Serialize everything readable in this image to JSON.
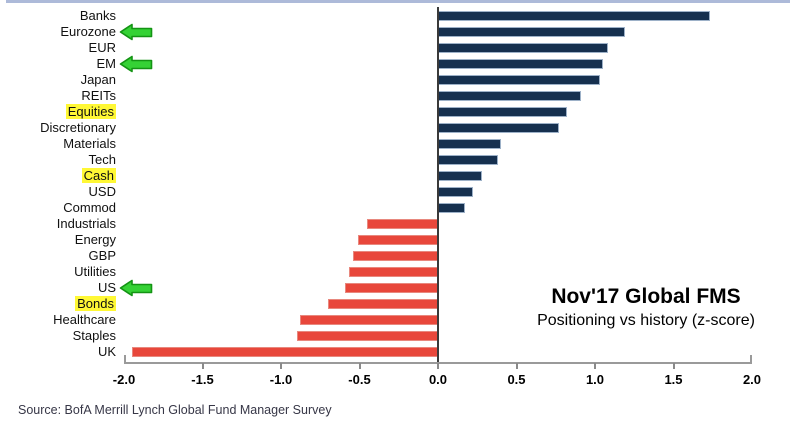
{
  "chart_data": {
    "type": "bar",
    "orientation": "horizontal",
    "title": "Nov'17 Global FMS",
    "subtitle": "Positioning vs history (z-score)",
    "categories": [
      "Banks",
      "Eurozone",
      "EUR",
      "EM",
      "Japan",
      "REITs",
      "Equities",
      "Discretionary",
      "Materials",
      "Tech",
      "Cash",
      "USD",
      "Commod",
      "Industrials",
      "Energy",
      "GBP",
      "Utilities",
      "US",
      "Bonds",
      "Healthcare",
      "Staples",
      "UK"
    ],
    "values": [
      1.73,
      1.19,
      1.08,
      1.05,
      1.03,
      0.91,
      0.82,
      0.77,
      0.4,
      0.38,
      0.28,
      0.22,
      0.17,
      -0.45,
      -0.51,
      -0.54,
      -0.57,
      -0.59,
      -0.7,
      -0.88,
      -0.9,
      -1.95
    ],
    "xlim": [
      -2.0,
      2.0
    ],
    "x_ticks": [
      -2.0,
      -1.5,
      -1.0,
      -0.5,
      0.0,
      0.5,
      1.0,
      1.5,
      2.0
    ],
    "x_tick_labels": [
      "-2.0",
      "-1.5",
      "-1.0",
      "-0.5",
      "0.0",
      "0.5",
      "1.0",
      "1.5",
      "2.0"
    ],
    "grid": false,
    "legend": "none",
    "positive_color": "#16304F",
    "negative_color": "#E8473B",
    "highlight_color": "#FFF835",
    "arrow_color": "#35D235",
    "highlighted_labels": [
      "Equities",
      "Cash",
      "Bonds"
    ],
    "arrow_labels": [
      "Eurozone",
      "EM",
      "US"
    ]
  },
  "annotations": {
    "arrow_icon": "green-left-arrow"
  },
  "source": {
    "text": "Source: BofA Merrill Lynch Global Fund Manager Survey"
  },
  "decor": {
    "top_band_color": "#adbad9"
  }
}
